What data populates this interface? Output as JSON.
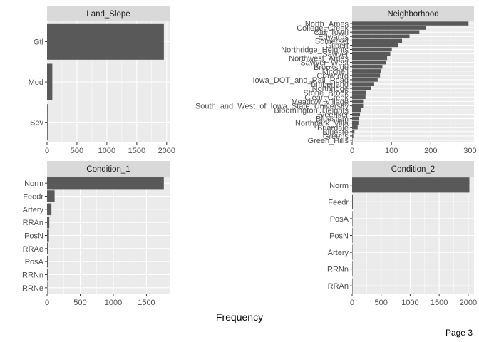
{
  "xlabel": "Frequency",
  "page_label": "Page 3",
  "colors": {
    "bar": "#595959",
    "panel_bg": "#ebebeb",
    "strip_bg": "#d9d9d9",
    "grid": "#ffffff"
  },
  "chart_data": [
    {
      "type": "bar",
      "orientation": "horizontal",
      "title": "Land_Slope",
      "categories": [
        "Gtl",
        "Mod",
        "Sev"
      ],
      "values": [
        1953,
        88,
        10
      ],
      "xlim": [
        0,
        2050
      ],
      "xticks": [
        0,
        500,
        1000,
        1500,
        2000
      ],
      "grid": true
    },
    {
      "type": "bar",
      "orientation": "horizontal",
      "title": "Neighborhood",
      "categories": [
        "North_Ames",
        "College_Creek",
        "Old_Town",
        "Edwards",
        "Somerset",
        "Gilbert",
        "Northridge_Heights",
        "Sawyer",
        "Northwest_Ames",
        "Sawyer_West",
        "Brookside",
        "Mitchell",
        "Crawford",
        "Iowa_DOT_and_Rail_Road",
        "Timberland",
        "Northridge",
        "Stone_Brook",
        "Clear_Creek",
        "Meadow_Village",
        "South_and_West_of_Iowa_State_University",
        "Bloomington_Heights",
        "Veenker",
        "Bluestem",
        "Northpark_Villa",
        "Briardale",
        "Blueste",
        "Greens",
        "Green_Hills"
      ],
      "values": [
        296,
        187,
        171,
        146,
        127,
        117,
        101,
        97,
        89,
        86,
        77,
        74,
        71,
        65,
        55,
        48,
        36,
        34,
        28,
        28,
        22,
        20,
        18,
        16,
        14,
        6,
        3,
        1
      ],
      "xlim": [
        0,
        310
      ],
      "xticks": [
        0,
        100,
        200,
        300
      ],
      "grid": true
    },
    {
      "type": "bar",
      "orientation": "horizontal",
      "title": "Condition_1",
      "categories": [
        "Norm",
        "Feedr",
        "Artery",
        "RRAn",
        "PosN",
        "RRAe",
        "PosA",
        "RRNn",
        "RRNe"
      ],
      "values": [
        1762,
        114,
        66,
        34,
        28,
        20,
        14,
        10,
        5
      ],
      "xlim": [
        0,
        1850
      ],
      "xticks": [
        0,
        500,
        1000,
        1500
      ],
      "grid": true
    },
    {
      "type": "bar",
      "orientation": "horizontal",
      "title": "Condition_2",
      "categories": [
        "Norm",
        "Feedr",
        "PosA",
        "PosN",
        "Artery",
        "RRNn",
        "RRAn"
      ],
      "values": [
        2020,
        12,
        3,
        3,
        2,
        2,
        1
      ],
      "xlim": [
        0,
        2100
      ],
      "xticks": [
        0,
        500,
        1000,
        1500,
        2000
      ],
      "grid": true
    }
  ]
}
